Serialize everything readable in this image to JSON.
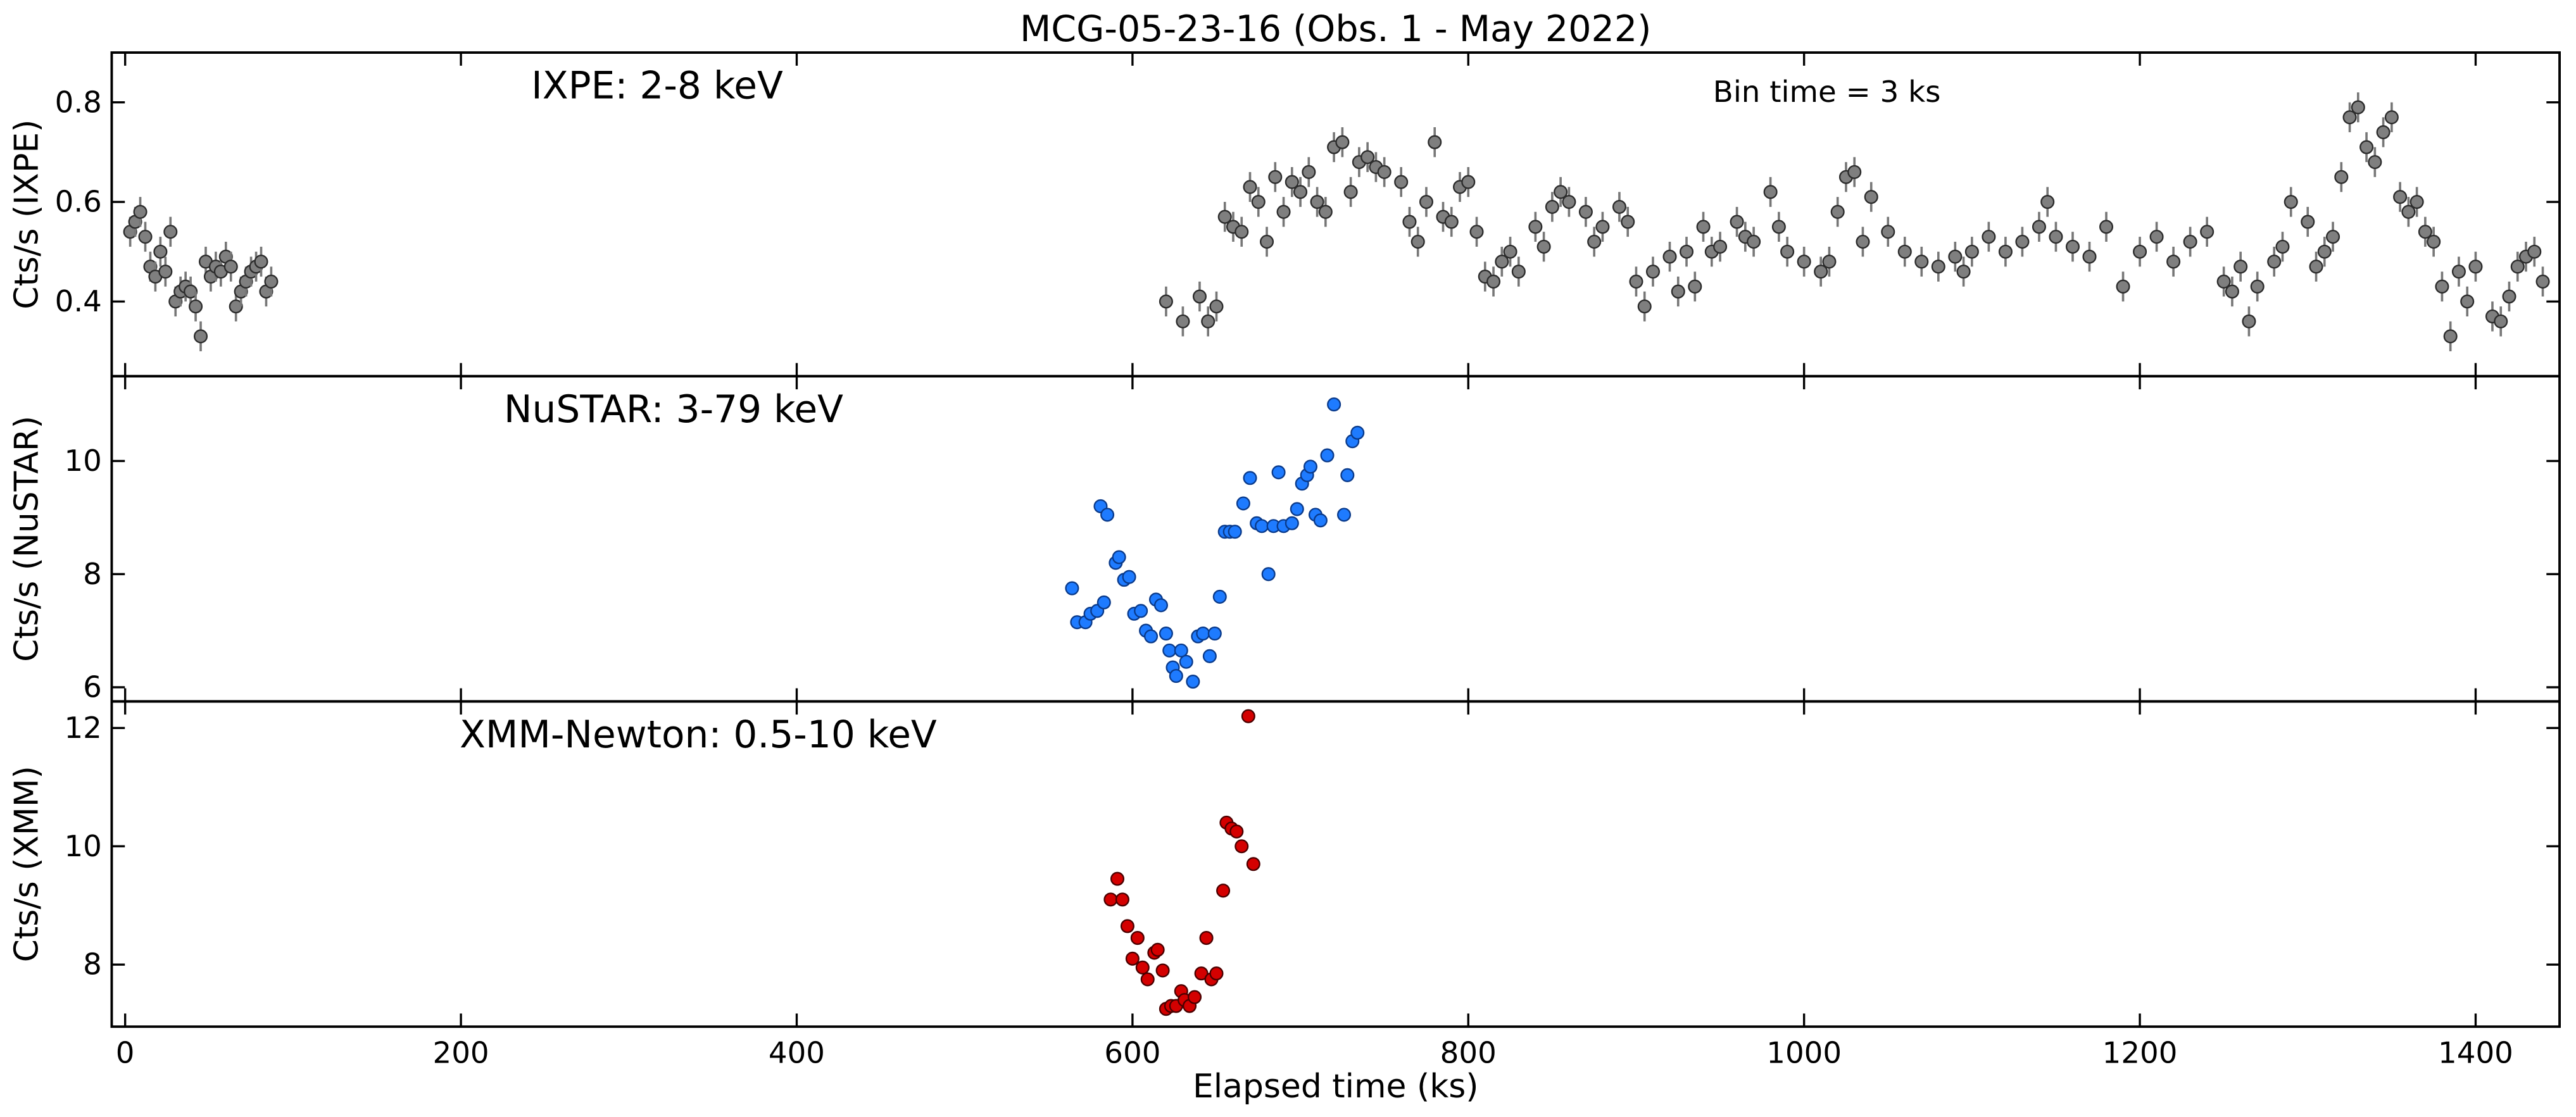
{
  "chart_data": [
    {
      "type": "scatter",
      "title": "MCG-05-23-16 (Obs. 1 - May 2022)",
      "label": "IXPE: 2-8 keV",
      "annotation": "Bin time = 3 ks",
      "ylabel": "Cts/s (IXPE)",
      "color": "#7f7f7f",
      "edgecolor": "#2b2b2b",
      "error": 0.03,
      "x": [
        3,
        6,
        9,
        12,
        15,
        18,
        21,
        24,
        27,
        30,
        33,
        36,
        39,
        42,
        45,
        48,
        51,
        54,
        57,
        60,
        63,
        66,
        69,
        72,
        75,
        78,
        81,
        84,
        87,
        620,
        630,
        640,
        645,
        650,
        655,
        660,
        665,
        670,
        675,
        680,
        685,
        690,
        695,
        700,
        705,
        710,
        715,
        720,
        725,
        730,
        735,
        740,
        745,
        750,
        760,
        765,
        770,
        775,
        780,
        785,
        790,
        795,
        800,
        805,
        810,
        815,
        820,
        825,
        830,
        840,
        845,
        850,
        855,
        860,
        870,
        875,
        880,
        890,
        895,
        900,
        905,
        910,
        920,
        925,
        930,
        935,
        940,
        945,
        950,
        960,
        965,
        970,
        980,
        985,
        990,
        1000,
        1010,
        1015,
        1020,
        1025,
        1030,
        1035,
        1040,
        1050,
        1060,
        1070,
        1080,
        1090,
        1095,
        1100,
        1110,
        1120,
        1130,
        1140,
        1145,
        1150,
        1160,
        1170,
        1180,
        1190,
        1200,
        1210,
        1220,
        1230,
        1240,
        1250,
        1255,
        1260,
        1265,
        1270,
        1280,
        1285,
        1290,
        1300,
        1305,
        1310,
        1315,
        1320,
        1325,
        1330,
        1335,
        1340,
        1345,
        1350,
        1355,
        1360,
        1365,
        1370,
        1375,
        1380,
        1385,
        1390,
        1395,
        1400,
        1410,
        1415,
        1420,
        1425,
        1430,
        1435,
        1440
      ],
      "values": [
        0.54,
        0.56,
        0.58,
        0.53,
        0.47,
        0.45,
        0.5,
        0.46,
        0.54,
        0.4,
        0.42,
        0.43,
        0.42,
        0.39,
        0.33,
        0.48,
        0.45,
        0.47,
        0.46,
        0.49,
        0.47,
        0.39,
        0.42,
        0.44,
        0.46,
        0.47,
        0.48,
        0.42,
        0.44,
        0.4,
        0.36,
        0.41,
        0.36,
        0.39,
        0.57,
        0.55,
        0.54,
        0.63,
        0.6,
        0.52,
        0.65,
        0.58,
        0.64,
        0.62,
        0.66,
        0.6,
        0.58,
        0.71,
        0.72,
        0.62,
        0.68,
        0.69,
        0.67,
        0.66,
        0.64,
        0.56,
        0.52,
        0.6,
        0.72,
        0.57,
        0.56,
        0.63,
        0.64,
        0.54,
        0.45,
        0.44,
        0.48,
        0.5,
        0.46,
        0.55,
        0.51,
        0.59,
        0.62,
        0.6,
        0.58,
        0.52,
        0.55,
        0.59,
        0.56,
        0.44,
        0.39,
        0.46,
        0.49,
        0.42,
        0.5,
        0.43,
        0.55,
        0.5,
        0.51,
        0.56,
        0.53,
        0.52,
        0.62,
        0.55,
        0.5,
        0.48,
        0.46,
        0.48,
        0.58,
        0.65,
        0.66,
        0.52,
        0.61,
        0.54,
        0.5,
        0.48,
        0.47,
        0.49,
        0.46,
        0.5,
        0.53,
        0.5,
        0.52,
        0.55,
        0.6,
        0.53,
        0.51,
        0.49,
        0.55,
        0.43,
        0.5,
        0.53,
        0.48,
        0.52,
        0.54,
        0.44,
        0.42,
        0.47,
        0.36,
        0.43,
        0.48,
        0.51,
        0.6,
        0.56,
        0.47,
        0.5,
        0.53,
        0.65,
        0.77,
        0.79,
        0.71,
        0.68,
        0.74,
        0.77,
        0.61,
        0.58,
        0.6,
        0.54,
        0.52,
        0.43,
        0.33,
        0.46,
        0.4,
        0.47,
        0.37,
        0.36,
        0.41,
        0.47,
        0.49,
        0.5,
        0.44
      ],
      "xlim": [
        -8,
        1450
      ],
      "xticks": [
        0,
        200,
        400,
        600,
        800,
        1000,
        1200,
        1400
      ],
      "ylim": [
        0.25,
        0.9
      ],
      "yticks": [
        0.4,
        0.6,
        0.8
      ]
    },
    {
      "type": "scatter",
      "label": "NuSTAR: 3-79 keV",
      "ylabel": "Cts/s (NuSTAR)",
      "color": "#1e7bff",
      "edgecolor": "#0a3a8a",
      "error": 0.12,
      "x": [
        564,
        567,
        572,
        575,
        579,
        581,
        583,
        585,
        590,
        592,
        595,
        598,
        601,
        605,
        608,
        611,
        614,
        617,
        620,
        622,
        624,
        626,
        629,
        632,
        636,
        639,
        642,
        646,
        649,
        652,
        655,
        658,
        661,
        666,
        670,
        674,
        677,
        681,
        684,
        687,
        690,
        695,
        698,
        701,
        704,
        706,
        709,
        712,
        716,
        720,
        726,
        728,
        731,
        734
      ],
      "values": [
        7.75,
        7.15,
        7.15,
        7.3,
        7.35,
        9.2,
        7.5,
        9.05,
        8.2,
        8.3,
        7.9,
        7.95,
        7.3,
        7.35,
        7.0,
        6.9,
        7.55,
        7.45,
        6.95,
        6.65,
        6.35,
        6.2,
        6.65,
        6.45,
        6.1,
        6.9,
        6.95,
        6.55,
        6.95,
        7.6,
        8.75,
        8.75,
        8.75,
        9.25,
        9.7,
        8.9,
        8.85,
        8.0,
        8.85,
        9.8,
        8.85,
        8.9,
        9.15,
        9.6,
        9.75,
        9.9,
        9.05,
        8.95,
        10.1,
        11.0,
        9.05,
        9.75,
        10.35,
        10.5
      ],
      "xlim": [
        -8,
        1450
      ],
      "xticks": [
        0,
        200,
        400,
        600,
        800,
        1000,
        1200,
        1400
      ],
      "ylim": [
        5.75,
        11.5
      ],
      "yticks": [
        6,
        8,
        10
      ]
    },
    {
      "type": "scatter",
      "label": "XMM-Newton: 0.5-10 keV",
      "ylabel": "Cts/s (XMM)",
      "xlabel": "Elapsed time (ks)",
      "color": "#d40000",
      "edgecolor": "#4a0000",
      "x": [
        587,
        591,
        594,
        597,
        600,
        603,
        606,
        609,
        613,
        615,
        618,
        620,
        623,
        626,
        629,
        631,
        634,
        637,
        641,
        644,
        647,
        650,
        654,
        656,
        659,
        662,
        665,
        669,
        672
      ],
      "values": [
        9.1,
        9.45,
        9.1,
        8.65,
        8.1,
        8.45,
        7.95,
        7.75,
        8.2,
        8.25,
        7.9,
        7.25,
        7.3,
        7.3,
        7.55,
        7.4,
        7.3,
        7.45,
        7.85,
        8.45,
        7.75,
        7.85,
        9.25,
        10.4,
        10.3,
        10.25,
        10.0,
        12.2,
        9.7
      ],
      "xlim": [
        -8,
        1450
      ],
      "xticks": [
        0,
        200,
        400,
        600,
        800,
        1000,
        1200,
        1400
      ],
      "ylim": [
        6.95,
        12.45
      ],
      "yticks": [
        8,
        10,
        12
      ]
    }
  ]
}
